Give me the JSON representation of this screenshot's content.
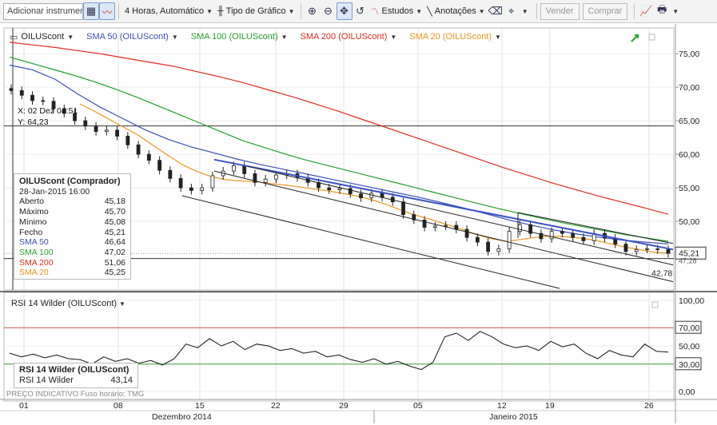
{
  "toolbar": {
    "instrument_placeholder": "Adicionar instrumento",
    "interval": "4 Horas,  Automático",
    "chart_type": "Tipo de Gráfico",
    "studies": "Estudos",
    "annotations": "Anotações",
    "sell": "Vender",
    "buy": "Comprar"
  },
  "legend": {
    "instrument": "OILUScont",
    "sma50": "SMA 50 (OILUScont)",
    "sma100": "SMA 100 (OILUScont)",
    "sma200": "SMA 200 (OILUScont)",
    "sma20": "SMA 20 (OILUScont)"
  },
  "crosshair": {
    "x": "X: 02 Dez 04:51",
    "y": "Y: 64,23"
  },
  "databox": {
    "title": "OILUScont (Comprador)",
    "datetime": "28-Jan-2015 16:00",
    "rows": [
      {
        "label": "Aberto",
        "value": "45,18"
      },
      {
        "label": "Máximo",
        "value": "45,70"
      },
      {
        "label": "Mínimo",
        "value": "45,08"
      },
      {
        "label": "Fecho",
        "value": "45,21"
      },
      {
        "label": "SMA 50",
        "value": "46,64"
      },
      {
        "label": "SMA 100",
        "value": "47,02"
      },
      {
        "label": "SMA 200",
        "value": "51,06"
      },
      {
        "label": "SMA 20",
        "value": "45,25"
      }
    ]
  },
  "price_axis": {
    "ticks": [
      "75,00",
      "70,00",
      "65,00",
      "60,00",
      "55,00",
      "50,00"
    ],
    "last_price": "45,21",
    "partial_label": "47,28",
    "low_label": "42,78"
  },
  "rsi": {
    "legend": "RSI 14 Wilder (OILUScont)",
    "box_title": "RSI 14 Wilder (OILUScont)",
    "box_label": "RSI 14 Wilder",
    "box_value": "43,14",
    "ticks": [
      "100,00",
      "50,00",
      "0,00"
    ],
    "level_high": "70,00",
    "level_low": "30,00"
  },
  "footer": {
    "note": "PREÇO INDICATIVO   Fuso horário: TMG"
  },
  "time_axis": {
    "days": [
      "01",
      "08",
      "15",
      "22",
      "29",
      "05",
      "12",
      "19",
      "26"
    ],
    "months": [
      "Dezembro 2014",
      "Janeiro 2015"
    ]
  },
  "colors": {
    "sma50": "#3b4fb5",
    "sma100": "#23a02c",
    "sma200": "#e02b20",
    "sma20": "#e8951e",
    "trend_blue": "#3a52c4",
    "rsi_high": "#c0504d",
    "rsi_low": "#3a9a3a",
    "last_price_box": "#ffffff"
  },
  "chart_data": {
    "type": "line",
    "title": "",
    "ylim": [
      40,
      78
    ],
    "price_close": [
      69.5,
      68.8,
      68.0,
      67.9,
      66.8,
      66.1,
      65.0,
      64.2,
      63.4,
      63.6,
      62.7,
      61.4,
      60.0,
      59.1,
      57.6,
      56.4,
      55.0,
      54.6,
      55.0,
      56.8,
      57.5,
      58.3,
      57.1,
      55.8,
      56.3,
      56.9,
      57.1,
      56.5,
      55.8,
      55.0,
      54.7,
      54.9,
      54.1,
      53.5,
      54.2,
      53.6,
      52.9,
      51.0,
      50.2,
      49.1,
      49.3,
      49.4,
      48.8,
      47.6,
      46.9,
      45.5,
      45.9,
      48.5,
      49.5,
      48.2,
      47.4,
      48.5,
      48.2,
      47.6,
      47.1,
      48.2,
      47.5,
      46.6,
      45.5,
      45.8,
      45.9,
      45.8,
      45.2
    ],
    "series": [
      {
        "name": "SMA 20 (OILUScont)",
        "values": [
          67.5,
          66.4,
          65.2,
          64.0,
          62.8,
          61.3,
          59.8,
          58.4,
          57.4,
          56.6,
          56.2,
          56.0,
          55.9,
          55.6,
          55.4,
          55.1,
          54.8,
          54.5,
          54.1,
          53.7,
          53.1,
          52.4,
          51.5,
          50.8,
          50.2,
          49.5,
          48.8,
          48.0,
          47.4,
          47.0,
          47.3,
          47.6,
          47.8,
          47.7,
          47.5,
          47.2,
          46.7,
          46.2,
          45.8,
          45.4,
          45.25
        ]
      },
      {
        "name": "SMA 50 (OILUScont)",
        "values": [
          73.3,
          72.6,
          71.2,
          69.0,
          67.0,
          65.3,
          63.6,
          62.2,
          61.1,
          60.2,
          59.3,
          58.5,
          57.8,
          57.1,
          56.4,
          55.7,
          55.0,
          54.3,
          53.6,
          52.8,
          52.0,
          51.1,
          50.2,
          49.4,
          48.7,
          48.1,
          47.6,
          47.2,
          46.9,
          46.64
        ]
      },
      {
        "name": "SMA 100 (OILUScont)",
        "values": [
          74.5,
          73.6,
          72.7,
          71.8,
          70.8,
          69.7,
          68.5,
          67.2,
          65.9,
          64.6,
          63.3,
          62.0,
          61.0,
          60.0,
          59.1,
          58.3,
          57.5,
          56.7,
          55.9,
          55.1,
          54.3,
          53.5,
          52.7,
          51.9,
          51.2,
          50.5,
          49.8,
          49.2,
          48.6,
          48.0,
          47.5,
          47.02
        ]
      },
      {
        "name": "SMA 200 (OILUScont)",
        "values": [
          76.7,
          76.3,
          75.9,
          75.4,
          74.9,
          74.3,
          73.7,
          73.1,
          72.3,
          71.5,
          70.6,
          69.6,
          68.6,
          67.5,
          66.4,
          65.2,
          64.0,
          62.8,
          61.6,
          60.4,
          59.2,
          58.0,
          56.9,
          55.8,
          54.8,
          53.8,
          52.9,
          52.0,
          51.06
        ]
      }
    ],
    "rsi": [
      42,
      38,
      41,
      37,
      40,
      36,
      35,
      30,
      38,
      33,
      36,
      31,
      34,
      29,
      36,
      52,
      48,
      58,
      50,
      55,
      46,
      52,
      50,
      45,
      47,
      42,
      44,
      38,
      40,
      35,
      32,
      36,
      30,
      33,
      28,
      24,
      32,
      60,
      64,
      56,
      66,
      60,
      52,
      48,
      50,
      45,
      55,
      49,
      52,
      42,
      36,
      45,
      40,
      38,
      52,
      44,
      43.14
    ],
    "rsi_ylim": [
      0,
      100
    ],
    "rsi_levels": [
      70,
      30
    ],
    "grid": true,
    "legend": "top-left"
  }
}
